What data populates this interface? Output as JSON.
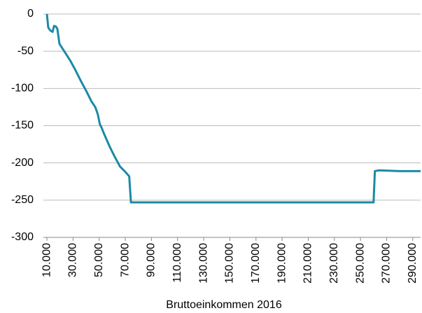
{
  "chart_data": {
    "type": "line",
    "x_label": "Bruttoeinkommen 2016",
    "series": [
      {
        "color": "#1b8aa6",
        "x": [
          10000,
          11000,
          12500,
          14300,
          15500,
          17000,
          18000,
          19600,
          24000,
          28000,
          32000,
          36000,
          40000,
          44000,
          47000,
          49000,
          50500,
          51700,
          54000,
          58000,
          62000,
          66000,
          70000,
          73000,
          74300,
          80000,
          100000,
          130000,
          160000,
          190000,
          220000,
          250000,
          260000,
          261000,
          264000,
          280000,
          296000
        ],
        "values": [
          0,
          -18,
          -22,
          -24,
          -16,
          -17,
          -20,
          -40,
          -52,
          -63,
          -76,
          -90,
          -103,
          -117,
          -125,
          -135,
          -148,
          -152,
          -162,
          -178,
          -192,
          -205,
          -212,
          -218,
          -253,
          -253,
          -253,
          -253,
          -253,
          -253,
          -253,
          -253,
          -253,
          -211,
          -210,
          -211,
          -211
        ]
      }
    ],
    "xlim": [
      7300,
      296000
    ],
    "xticks": [
      {
        "value": 10000,
        "label": "10.000"
      },
      {
        "value": 30000,
        "label": "30.000"
      },
      {
        "value": 50000,
        "label": "50.000"
      },
      {
        "value": 70000,
        "label": "70.000"
      },
      {
        "value": 90000,
        "label": "90.000"
      },
      {
        "value": 110000,
        "label": "110.000"
      },
      {
        "value": 130000,
        "label": "130.000"
      },
      {
        "value": 150000,
        "label": "150.000"
      },
      {
        "value": 170000,
        "label": "170.000"
      },
      {
        "value": 190000,
        "label": "190.000"
      },
      {
        "value": 210000,
        "label": "210.000"
      },
      {
        "value": 230000,
        "label": "230.000"
      },
      {
        "value": 250000,
        "label": "250.000"
      },
      {
        "value": 270000,
        "label": "270.000"
      },
      {
        "value": 290000,
        "label": "290.000"
      }
    ],
    "ylim": [
      -300,
      0
    ],
    "yticks": [
      0,
      -50,
      -100,
      -150,
      -200,
      -250,
      -300
    ],
    "grid": true
  }
}
